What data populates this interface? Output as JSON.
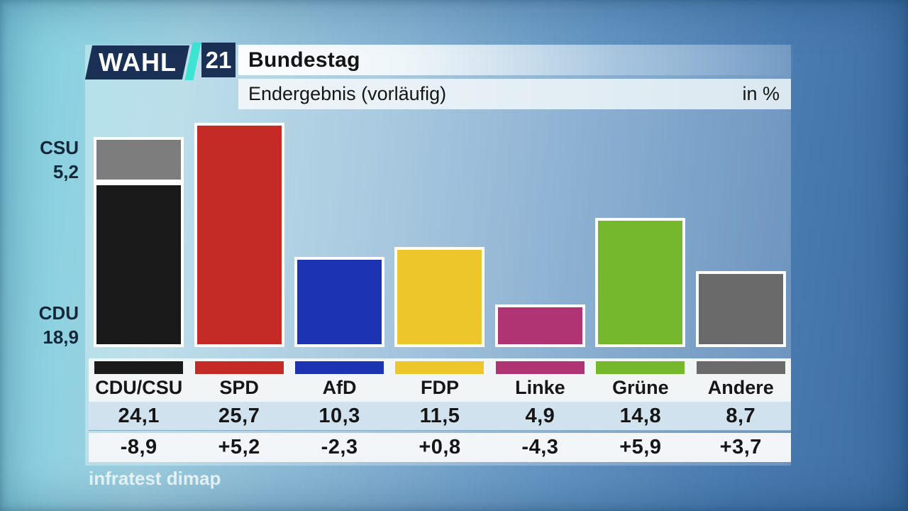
{
  "logo": {
    "wahl": "WAHL",
    "year": "21",
    "navy": "#1b3055",
    "teal": "#3ce4d4"
  },
  "header": {
    "title": "Bundestag",
    "subtitle": "Endergebnis (vorläufig)",
    "unit_label": "in %"
  },
  "annotations": {
    "csu": {
      "label": "CSU",
      "value": "5,2"
    },
    "cdu": {
      "label": "CDU",
      "value": "18,9"
    }
  },
  "source": "infratest dimap",
  "chart_data": {
    "type": "bar",
    "title": "Bundestag — Endergebnis (vorläufig)",
    "ylabel": "in %",
    "xlabel": "",
    "ylim": [
      0,
      27
    ],
    "grid": false,
    "legend_position": "bottom-table",
    "categories": [
      "CDU/CSU",
      "SPD",
      "AfD",
      "FDP",
      "Linke",
      "Grüne",
      "Andere"
    ],
    "values": [
      24.1,
      25.7,
      10.3,
      11.5,
      4.9,
      14.8,
      8.7
    ],
    "value_labels": [
      "24,1",
      "25,7",
      "10,3",
      "11,5",
      "4,9",
      "14,8",
      "8,7"
    ],
    "changes": [
      "-8,9",
      "+5,2",
      "-2,3",
      "+0,8",
      "-4,3",
      "+5,9",
      "+3,7"
    ],
    "colors": [
      "#1a1a1a",
      "#c42b26",
      "#1c33b2",
      "#ecc62b",
      "#b03374",
      "#76b82c",
      "#6a6a6a"
    ],
    "stacked_first_bar": {
      "category": "CDU/CSU",
      "segments": [
        {
          "label": "CDU",
          "value": 18.9,
          "color": "#1a1a1a"
        },
        {
          "label": "CSU",
          "value": 5.2,
          "color": "#7d7d7d"
        }
      ]
    }
  }
}
